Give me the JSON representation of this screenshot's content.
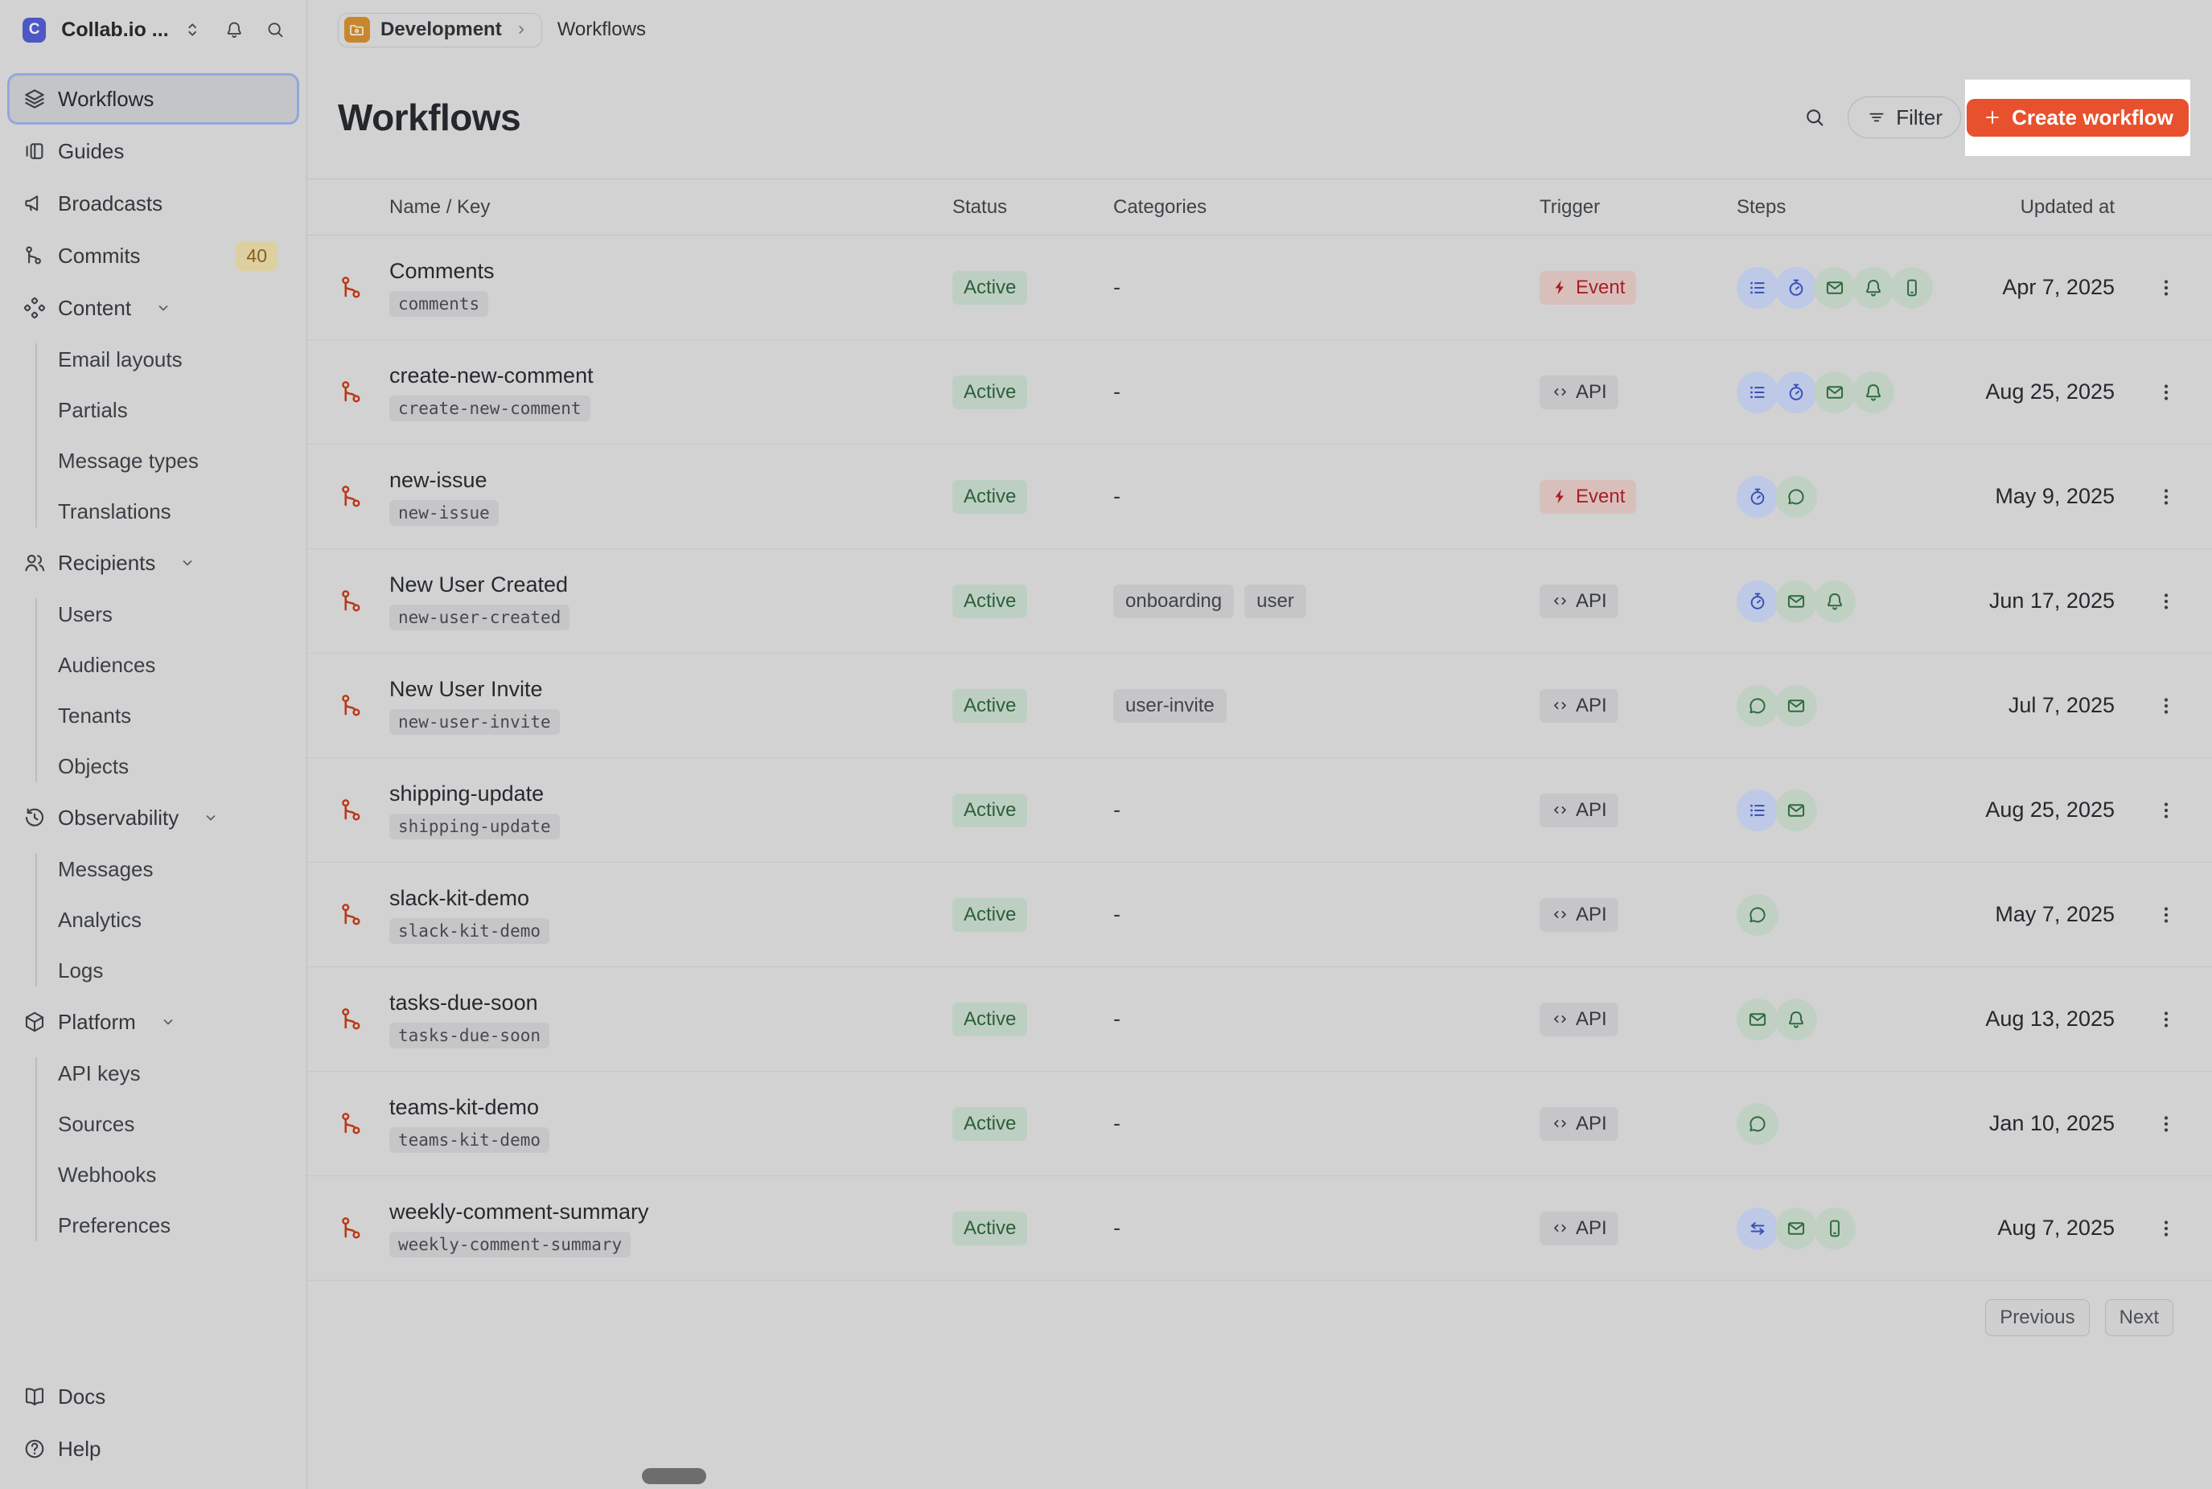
{
  "workspace": {
    "name": "Collab.io ...",
    "logo_letter": "C"
  },
  "sidebar": {
    "items": [
      {
        "label": "Workflows",
        "icon": "layers",
        "selected": true
      },
      {
        "label": "Guides",
        "icon": "guides"
      },
      {
        "label": "Broadcasts",
        "icon": "megaphone"
      },
      {
        "label": "Commits",
        "icon": "git-branch",
        "badge": "40"
      },
      {
        "label": "Content",
        "icon": "shapes",
        "expandable": true,
        "children": [
          "Email layouts",
          "Partials",
          "Message types",
          "Translations"
        ]
      },
      {
        "label": "Recipients",
        "icon": "users",
        "expandable": true,
        "children": [
          "Users",
          "Audiences",
          "Tenants",
          "Objects"
        ]
      },
      {
        "label": "Observability",
        "icon": "history",
        "expandable": true,
        "children": [
          "Messages",
          "Analytics",
          "Logs"
        ]
      },
      {
        "label": "Platform",
        "icon": "box",
        "expandable": true,
        "children": [
          "API keys",
          "Sources",
          "Webhooks",
          "Preferences"
        ]
      }
    ],
    "footer_items": [
      {
        "label": "Docs",
        "icon": "book"
      },
      {
        "label": "Help",
        "icon": "help-circle"
      }
    ]
  },
  "breadcrumb": {
    "environment": "Development",
    "current": "Workflows"
  },
  "header": {
    "title": "Workflows",
    "filter_label": "Filter",
    "create_label": "Create workflow"
  },
  "table": {
    "columns": [
      "Name / Key",
      "Status",
      "Categories",
      "Trigger",
      "Steps",
      "Updated at"
    ],
    "rows": [
      {
        "name": "Comments",
        "key": "comments",
        "status": "Active",
        "categories": [],
        "trigger": "event",
        "trigger_label": "Event",
        "steps": [
          "batch",
          "delay",
          "email",
          "in_app",
          "push"
        ],
        "updated_at": "Apr 7, 2025"
      },
      {
        "name": "create-new-comment",
        "key": "create-new-comment",
        "status": "Active",
        "categories": [],
        "trigger": "api",
        "trigger_label": "API",
        "steps": [
          "batch",
          "delay",
          "email",
          "in_app"
        ],
        "updated_at": "Aug 25, 2025"
      },
      {
        "name": "new-issue",
        "key": "new-issue",
        "status": "Active",
        "categories": [],
        "trigger": "event",
        "trigger_label": "Event",
        "steps": [
          "delay",
          "chat"
        ],
        "updated_at": "May 9, 2025"
      },
      {
        "name": "New User Created",
        "key": "new-user-created",
        "status": "Active",
        "categories": [
          "onboarding",
          "user"
        ],
        "trigger": "api",
        "trigger_label": "API",
        "steps": [
          "delay",
          "email",
          "in_app"
        ],
        "updated_at": "Jun 17, 2025"
      },
      {
        "name": "New User Invite",
        "key": "new-user-invite",
        "status": "Active",
        "categories": [
          "user-invite"
        ],
        "trigger": "api",
        "trigger_label": "API",
        "steps": [
          "chat",
          "email"
        ],
        "updated_at": "Jul 7, 2025"
      },
      {
        "name": "shipping-update",
        "key": "shipping-update",
        "status": "Active",
        "categories": [],
        "trigger": "api",
        "trigger_label": "API",
        "steps": [
          "batch",
          "email"
        ],
        "updated_at": "Aug 25, 2025"
      },
      {
        "name": "slack-kit-demo",
        "key": "slack-kit-demo",
        "status": "Active",
        "categories": [],
        "trigger": "api",
        "trigger_label": "API",
        "steps": [
          "chat"
        ],
        "updated_at": "May 7, 2025"
      },
      {
        "name": "tasks-due-soon",
        "key": "tasks-due-soon",
        "status": "Active",
        "categories": [],
        "trigger": "api",
        "trigger_label": "API",
        "steps": [
          "email",
          "in_app"
        ],
        "updated_at": "Aug 13, 2025"
      },
      {
        "name": "teams-kit-demo",
        "key": "teams-kit-demo",
        "status": "Active",
        "categories": [],
        "trigger": "api",
        "trigger_label": "API",
        "steps": [
          "chat"
        ],
        "updated_at": "Jan 10, 2025"
      },
      {
        "name": "weekly-comment-summary",
        "key": "weekly-comment-summary",
        "status": "Active",
        "categories": [],
        "trigger": "api",
        "trigger_label": "API",
        "steps": [
          "fetch",
          "email",
          "push"
        ],
        "updated_at": "Aug 7, 2025"
      }
    ]
  },
  "pagination": {
    "previous": "Previous",
    "next": "Next"
  },
  "colors": {
    "accent_orange": "#e8512d",
    "environment_orange": "#c8872c",
    "active_green_text": "#2c5f3a",
    "active_green_bg": "#bdcfc2",
    "event_red_text": "#a81e28",
    "event_red_bg": "#d9bfbc",
    "step_blue": "#3a50b5",
    "step_green": "#2e6a3e",
    "workflow_icon_red": "#b9391a",
    "logo_indigo": "#4d58c5",
    "commits_badge_bg": "#ddd0a0",
    "highlight_box": "#ffffff"
  }
}
